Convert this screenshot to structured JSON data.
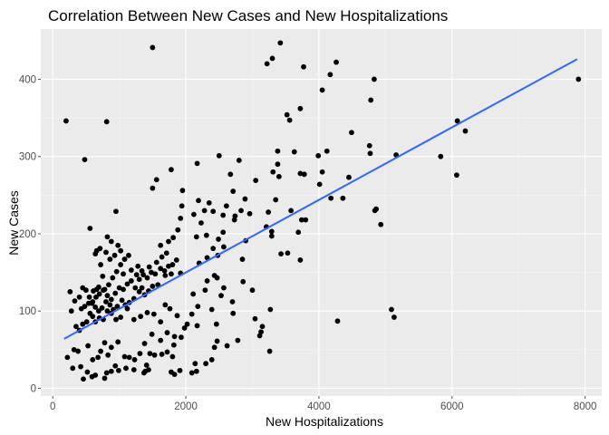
{
  "chart_data": {
    "type": "scatter",
    "title": "Correlation Between New Cases and New Hospitalizations",
    "xlabel": "New Hospitalizations",
    "ylabel": "New Cases",
    "xlim": [
      -180,
      8250
    ],
    "ylim": [
      -10,
      465
    ],
    "x_ticks": [
      0,
      2000,
      4000,
      6000,
      8000
    ],
    "x_tick_labels": [
      "0",
      "2000",
      "4000",
      "6000",
      "8000"
    ],
    "y_ticks": [
      0,
      100,
      200,
      300,
      400
    ],
    "y_tick_labels": [
      "0",
      "100",
      "200",
      "300",
      "400"
    ],
    "grid": true,
    "legend": "none",
    "colors": {
      "panel": "#ebebeb",
      "grid_major": "#ffffff",
      "grid_minor": "#f5f5f5",
      "points": "#000000",
      "trend": "#3366ff",
      "ticks": "#4d4d4d"
    },
    "trend_line": {
      "method": "linear",
      "x": [
        170,
        7880
      ],
      "y": [
        64,
        426
      ]
    },
    "points": [
      [
        200,
        346
      ],
      [
        810,
        345
      ],
      [
        480,
        296
      ],
      [
        1500,
        441
      ],
      [
        3420,
        447
      ],
      [
        3300,
        427
      ],
      [
        3220,
        420
      ],
      [
        3770,
        416
      ],
      [
        4260,
        422
      ],
      [
        4170,
        406
      ],
      [
        4050,
        386
      ],
      [
        4830,
        400
      ],
      [
        7900,
        400
      ],
      [
        4780,
        373
      ],
      [
        6080,
        346
      ],
      [
        6200,
        333
      ],
      [
        5830,
        300
      ],
      [
        6070,
        276
      ],
      [
        5160,
        302
      ],
      [
        3520,
        354
      ],
      [
        3560,
        347
      ],
      [
        3720,
        362
      ],
      [
        4490,
        331
      ],
      [
        4760,
        314
      ],
      [
        4770,
        304
      ],
      [
        3990,
        301
      ],
      [
        3630,
        306
      ],
      [
        3380,
        307
      ],
      [
        4120,
        307
      ],
      [
        3380,
        290
      ],
      [
        3310,
        280
      ],
      [
        3720,
        278
      ],
      [
        3780,
        277
      ],
      [
        4050,
        280
      ],
      [
        4450,
        273
      ],
      [
        3400,
        274
      ],
      [
        4010,
        264
      ],
      [
        4180,
        246
      ],
      [
        4360,
        246
      ],
      [
        4840,
        230
      ],
      [
        4860,
        232
      ],
      [
        4930,
        212
      ],
      [
        3350,
        244
      ],
      [
        3240,
        228
      ],
      [
        3210,
        209
      ],
      [
        3290,
        203
      ],
      [
        3800,
        218
      ],
      [
        3740,
        218
      ],
      [
        3580,
        230
      ],
      [
        3690,
        202
      ],
      [
        3530,
        175
      ],
      [
        3430,
        174
      ],
      [
        3290,
        197
      ],
      [
        3720,
        166
      ],
      [
        4280,
        87
      ],
      [
        5090,
        102
      ],
      [
        5130,
        92
      ],
      [
        2500,
        301
      ],
      [
        2800,
        295
      ],
      [
        2670,
        277
      ],
      [
        2170,
        291
      ],
      [
        1780,
        283
      ],
      [
        1500,
        259
      ],
      [
        1560,
        270
      ],
      [
        1950,
        256
      ],
      [
        2710,
        255
      ],
      [
        2890,
        245
      ],
      [
        2960,
        226
      ],
      [
        3050,
        269
      ],
      [
        2610,
        236
      ],
      [
        2350,
        240
      ],
      [
        2190,
        243
      ],
      [
        2280,
        230
      ],
      [
        2410,
        229
      ],
      [
        2560,
        224
      ],
      [
        2830,
        230
      ],
      [
        2740,
        223
      ],
      [
        2900,
        191
      ],
      [
        2850,
        167
      ],
      [
        2730,
        218
      ],
      [
        2560,
        202
      ],
      [
        2570,
        183
      ],
      [
        2490,
        193
      ],
      [
        2230,
        214
      ],
      [
        2120,
        225
      ],
      [
        2310,
        198
      ],
      [
        2160,
        196
      ],
      [
        2410,
        181
      ],
      [
        2320,
        169
      ],
      [
        2480,
        172
      ],
      [
        2200,
        162
      ],
      [
        2430,
        146
      ],
      [
        2470,
        143
      ],
      [
        2860,
        138
      ],
      [
        2570,
        130
      ],
      [
        2700,
        112
      ],
      [
        2320,
        139
      ],
      [
        2290,
        127
      ],
      [
        2110,
        122
      ],
      [
        2180,
        106
      ],
      [
        2090,
        96
      ],
      [
        2170,
        81
      ],
      [
        2460,
        83
      ],
      [
        2390,
        102
      ],
      [
        2710,
        97
      ],
      [
        2530,
        120
      ],
      [
        3000,
        127
      ],
      [
        3040,
        90
      ],
      [
        3150,
        80
      ],
      [
        3130,
        73
      ],
      [
        3110,
        68
      ],
      [
        3270,
        102
      ],
      [
        3260,
        48
      ],
      [
        2780,
        62
      ],
      [
        2620,
        55
      ],
      [
        2470,
        61
      ],
      [
        2430,
        53
      ],
      [
        2390,
        37
      ],
      [
        2300,
        32
      ],
      [
        2140,
        32
      ],
      [
        2160,
        22
      ],
      [
        2090,
        20
      ],
      [
        1830,
        18
      ],
      [
        1780,
        21
      ],
      [
        1910,
        23
      ],
      [
        1800,
        41
      ],
      [
        1820,
        56
      ],
      [
        1720,
        47
      ],
      [
        1640,
        44
      ],
      [
        1530,
        43
      ],
      [
        1460,
        45
      ],
      [
        1410,
        30
      ],
      [
        1390,
        22
      ],
      [
        1440,
        24
      ],
      [
        1370,
        20
      ],
      [
        1220,
        24
      ],
      [
        1100,
        26
      ],
      [
        990,
        23
      ],
      [
        940,
        29
      ],
      [
        880,
        22
      ],
      [
        810,
        20
      ],
      [
        780,
        13
      ],
      [
        640,
        17
      ],
      [
        590,
        15
      ],
      [
        520,
        21
      ],
      [
        460,
        12
      ],
      [
        420,
        28
      ],
      [
        300,
        26
      ],
      [
        220,
        40
      ],
      [
        320,
        50
      ],
      [
        380,
        48
      ],
      [
        530,
        55
      ],
      [
        600,
        37
      ],
      [
        680,
        40
      ],
      [
        720,
        48
      ],
      [
        780,
        59
      ],
      [
        830,
        43
      ],
      [
        880,
        53
      ],
      [
        980,
        60
      ],
      [
        1080,
        41
      ],
      [
        1150,
        40
      ],
      [
        1230,
        37
      ],
      [
        1310,
        45
      ],
      [
        1380,
        58
      ],
      [
        1490,
        70
      ],
      [
        1620,
        62
      ],
      [
        1720,
        72
      ],
      [
        1830,
        67
      ],
      [
        1930,
        66
      ],
      [
        1980,
        78
      ],
      [
        2020,
        83
      ],
      [
        1870,
        94
      ],
      [
        1760,
        103
      ],
      [
        1690,
        108
      ],
      [
        1620,
        86
      ],
      [
        1520,
        96
      ],
      [
        1420,
        98
      ],
      [
        1320,
        93
      ],
      [
        1220,
        89
      ],
      [
        1120,
        103
      ],
      [
        1020,
        92
      ],
      [
        950,
        89
      ],
      [
        880,
        97
      ],
      [
        820,
        100
      ],
      [
        760,
        89
      ],
      [
        700,
        91
      ],
      [
        640,
        86
      ],
      [
        600,
        93
      ],
      [
        560,
        97
      ],
      [
        510,
        86
      ],
      [
        450,
        83
      ],
      [
        400,
        75
      ],
      [
        350,
        80
      ],
      [
        280,
        100
      ],
      [
        430,
        103
      ],
      [
        480,
        106
      ],
      [
        540,
        110
      ],
      [
        600,
        112
      ],
      [
        650,
        118
      ],
      [
        700,
        122
      ],
      [
        760,
        127
      ],
      [
        820,
        120
      ],
      [
        880,
        115
      ],
      [
        940,
        123
      ],
      [
        1000,
        130
      ],
      [
        1060,
        128
      ],
      [
        1120,
        135
      ],
      [
        1180,
        139
      ],
      [
        1240,
        130
      ],
      [
        1300,
        141
      ],
      [
        1360,
        147
      ],
      [
        1420,
        143
      ],
      [
        1480,
        150
      ],
      [
        1540,
        148
      ],
      [
        1620,
        155
      ],
      [
        1680,
        152
      ],
      [
        1740,
        158
      ],
      [
        1800,
        160
      ],
      [
        1860,
        166
      ],
      [
        1920,
        149
      ],
      [
        1780,
        148
      ],
      [
        1690,
        146
      ],
      [
        1580,
        134
      ],
      [
        1500,
        132
      ],
      [
        1440,
        126
      ],
      [
        1380,
        121
      ],
      [
        1300,
        125
      ],
      [
        1220,
        116
      ],
      [
        1150,
        111
      ],
      [
        1090,
        108
      ],
      [
        1040,
        114
      ],
      [
        970,
        106
      ],
      [
        910,
        102
      ],
      [
        860,
        108
      ],
      [
        800,
        112
      ],
      [
        740,
        104
      ],
      [
        690,
        100
      ],
      [
        640,
        105
      ],
      [
        590,
        110
      ],
      [
        550,
        118
      ],
      [
        500,
        127
      ],
      [
        450,
        130
      ],
      [
        400,
        118
      ],
      [
        330,
        113
      ],
      [
        260,
        125
      ],
      [
        560,
        207
      ],
      [
        660,
        178
      ],
      [
        720,
        160
      ],
      [
        750,
        145
      ],
      [
        690,
        131
      ],
      [
        660,
        128
      ],
      [
        610,
        126
      ],
      [
        780,
        128
      ],
      [
        840,
        134
      ],
      [
        900,
        143
      ],
      [
        960,
        151
      ],
      [
        1020,
        160
      ],
      [
        1080,
        167
      ],
      [
        1140,
        172
      ],
      [
        820,
        196
      ],
      [
        880,
        190
      ],
      [
        950,
        229
      ],
      [
        980,
        185
      ],
      [
        1020,
        178
      ],
      [
        930,
        172
      ],
      [
        860,
        167
      ],
      [
        800,
        176
      ],
      [
        710,
        181
      ],
      [
        640,
        174
      ],
      [
        1060,
        148
      ],
      [
        1180,
        153
      ],
      [
        1280,
        158
      ],
      [
        1340,
        152
      ],
      [
        1450,
        157
      ],
      [
        1560,
        163
      ],
      [
        1640,
        170
      ],
      [
        1710,
        175
      ],
      [
        1620,
        185
      ],
      [
        1740,
        190
      ],
      [
        1810,
        195
      ],
      [
        1880,
        205
      ],
      [
        1920,
        220
      ],
      [
        1940,
        236
      ],
      [
        1260,
        147
      ],
      [
        1340,
        130
      ]
    ]
  }
}
